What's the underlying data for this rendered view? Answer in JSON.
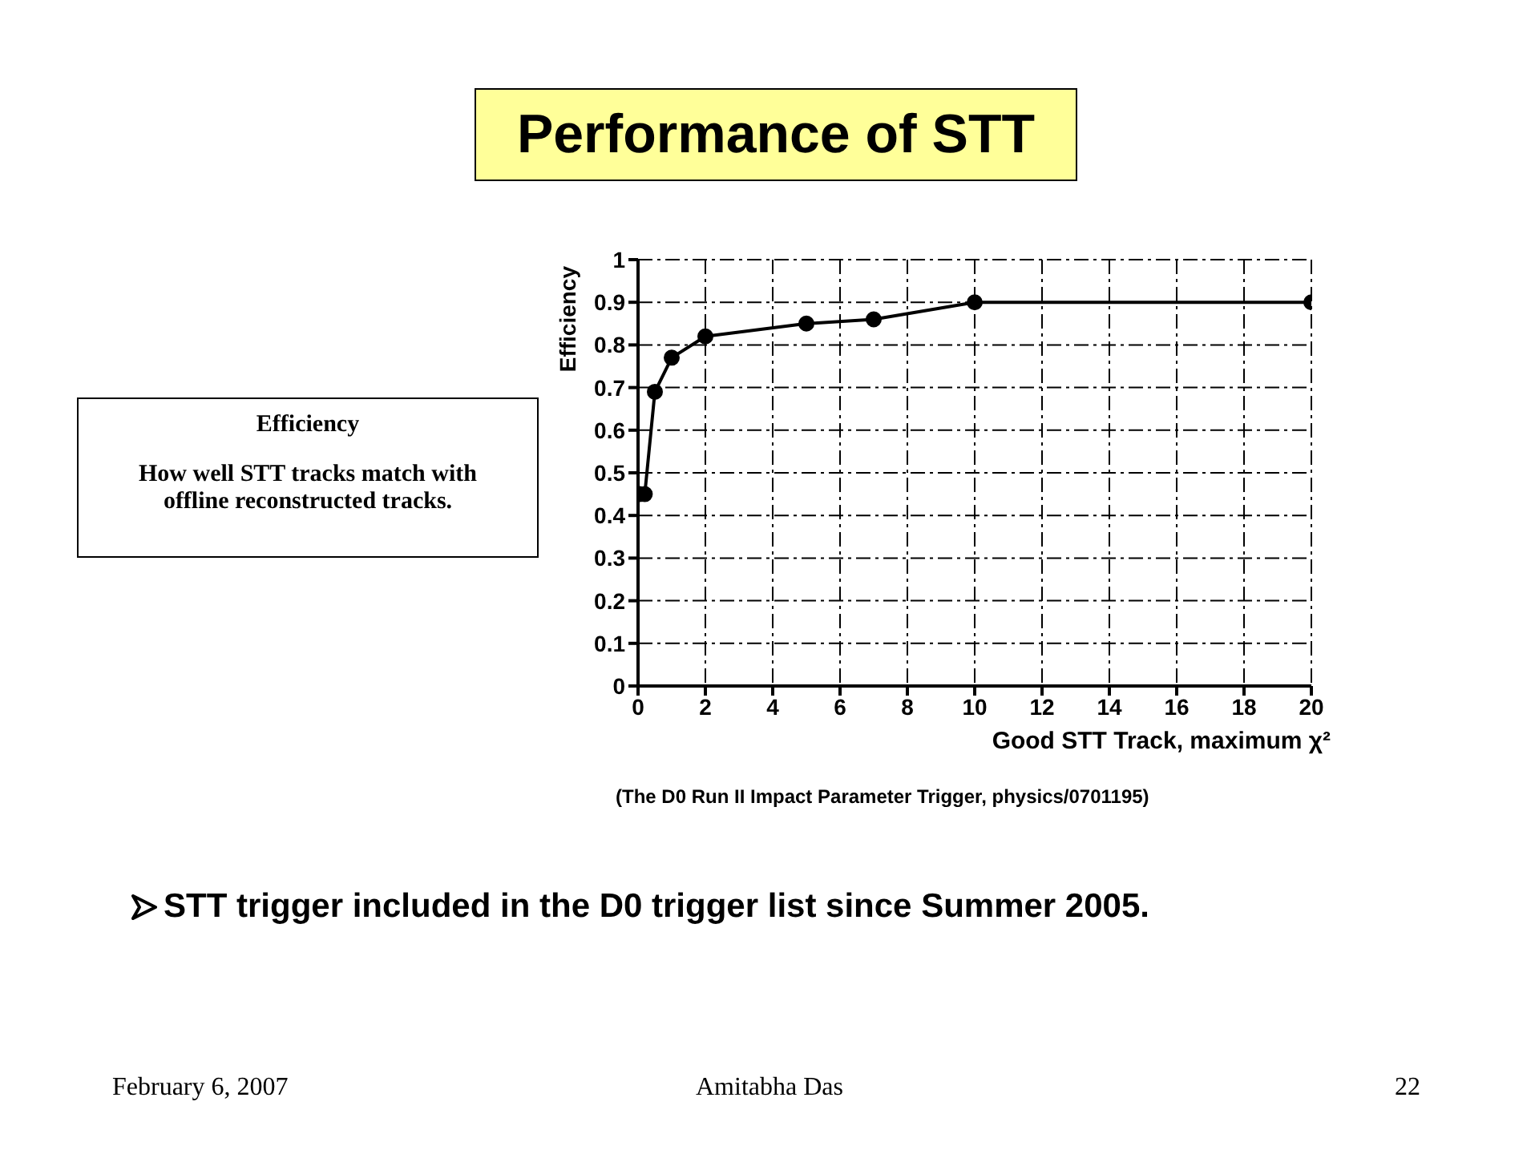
{
  "chart_data": {
    "type": "line",
    "title": "Performance of STT",
    "xlabel": "Good STT Track, maximum χ²",
    "ylabel": "Efficiency",
    "x": [
      0.05,
      0.2,
      0.5,
      1,
      2,
      5,
      7,
      10,
      20
    ],
    "series": [
      {
        "color": "#000000",
        "values": [
          0.45,
          0.45,
          0.69,
          0.77,
          0.82,
          0.85,
          0.86,
          0.9,
          0.9
        ]
      }
    ],
    "xlim": [
      0,
      20
    ],
    "xticks": [
      0,
      2,
      4,
      6,
      8,
      10,
      12,
      14,
      16,
      18,
      20
    ],
    "ylim": [
      0,
      1
    ],
    "yticks": [
      0,
      0.1,
      0.2,
      0.3,
      0.4,
      0.5,
      0.6,
      0.7,
      0.8,
      0.9,
      1
    ],
    "grid": true,
    "marker": "circle",
    "line_style": "solid",
    "annotations": [
      "Efficiency",
      "How well STT tracks match with offline reconstructed tracks.",
      "(The D0 Run II Impact Parameter Trigger,  physics/0701195)",
      "STT trigger included in the D0 trigger list since Summer 2005.",
      "February 6, 2007",
      "Amitabha Das",
      "22"
    ]
  }
}
